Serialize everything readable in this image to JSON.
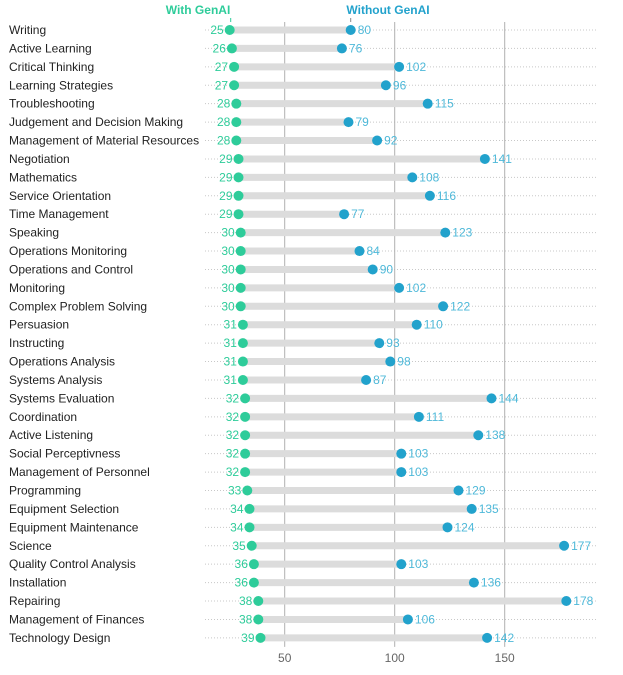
{
  "chart_data": {
    "type": "dumbbell",
    "title": "",
    "xlabel": "",
    "ylabel": "",
    "xlim": [
      0,
      183
    ],
    "xticks": [
      50,
      100,
      150
    ],
    "grid": true,
    "legend_position": "top",
    "series": [
      {
        "name": "With GenAI",
        "color": "#2ecc9a"
      },
      {
        "name": "Without GenAI",
        "color": "#22a2cc"
      }
    ],
    "categories": [
      "Writing",
      "Active Learning",
      "Critical Thinking",
      "Learning Strategies",
      "Troubleshooting",
      "Judgement and Decision Making",
      "Management of Material Resources",
      "Negotiation",
      "Mathematics",
      "Service Orientation",
      "Time Management",
      "Speaking",
      "Operations Monitoring",
      "Operations and Control",
      "Monitoring",
      "Complex Problem Solving",
      "Persuasion",
      "Instructing",
      "Operations Analysis",
      "Systems Analysis",
      "Systems Evaluation",
      "Coordination",
      "Active Listening",
      "Social Perceptivness",
      "Management of Personnel",
      "Programming",
      "Equipment Selection",
      "Equipment Maintenance",
      "Science",
      "Quality Control Analysis",
      "Installation",
      "Repairing",
      "Management of Finances",
      "Technology Design"
    ],
    "with_genai": [
      25,
      26,
      27,
      27,
      28,
      28,
      28,
      29,
      29,
      29,
      29,
      30,
      30,
      30,
      30,
      30,
      31,
      31,
      31,
      31,
      32,
      32,
      32,
      32,
      32,
      33,
      34,
      34,
      35,
      36,
      36,
      38,
      38,
      39
    ],
    "without_genai": [
      80,
      76,
      102,
      96,
      115,
      79,
      92,
      141,
      108,
      116,
      77,
      123,
      84,
      90,
      102,
      122,
      110,
      93,
      98,
      87,
      144,
      111,
      138,
      103,
      103,
      129,
      135,
      124,
      177,
      103,
      136,
      178,
      106,
      142
    ]
  }
}
